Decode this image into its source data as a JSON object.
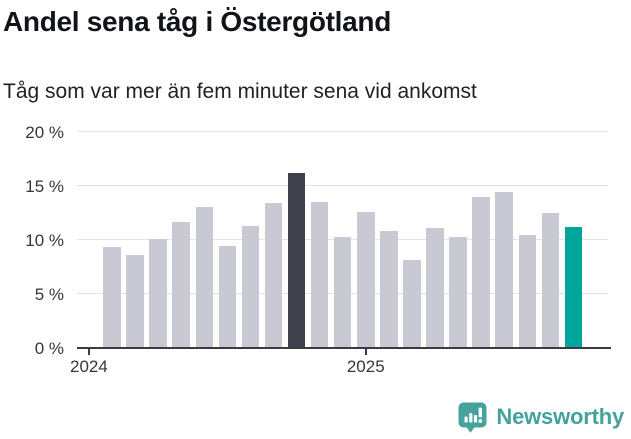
{
  "header": {
    "title": "Andel sena tåg i Östergötland",
    "subtitle": "Tåg som var mer än fem minuter sena vid ankomst"
  },
  "brand": {
    "name": "Newsworthy",
    "color": "#43a29b"
  },
  "chart_data": {
    "type": "bar",
    "title": "Andel sena tåg i Östergötland",
    "subtitle": "Tåg som var mer än fem minuter sena vid ankomst",
    "unit": "%",
    "categories": [
      "2024-02",
      "2024-03",
      "2024-04",
      "2024-05",
      "2024-06",
      "2024-07",
      "2024-08",
      "2024-09",
      "2024-10",
      "2024-11",
      "2024-12",
      "2025-01",
      "2025-02",
      "2025-03",
      "2025-04",
      "2025-05",
      "2025-06",
      "2025-07",
      "2025-08",
      "2025-09",
      "2025-10"
    ],
    "values": [
      9.3,
      8.6,
      10.1,
      11.6,
      13.0,
      9.4,
      11.3,
      13.4,
      16.2,
      13.5,
      10.3,
      12.6,
      10.8,
      8.1,
      11.1,
      10.3,
      14.0,
      14.4,
      10.4,
      12.5,
      11.2
    ],
    "ylim": [
      0,
      20
    ],
    "y_ticks": [
      0,
      5,
      10,
      15,
      20
    ],
    "y_tick_suffix": " %",
    "x_ticks": [
      {
        "label": "2024",
        "month": "2024-01"
      },
      {
        "label": "2025",
        "month": "2025-01"
      }
    ],
    "grid": true,
    "legend": "none",
    "colors": {
      "default": "#c9c9d3",
      "highlight": "#41414d",
      "latest": "#00a69c"
    },
    "highlight_index": 8,
    "latest_index": 20
  }
}
